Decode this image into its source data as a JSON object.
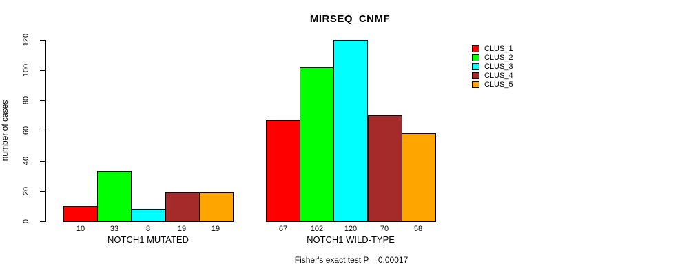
{
  "chart_data": {
    "type": "bar",
    "title": "MIRSEQ_CNMF",
    "ylabel": "number of cases",
    "xlabel": "",
    "ylim": [
      0,
      120
    ],
    "yticks": [
      0,
      20,
      40,
      60,
      80,
      100,
      120
    ],
    "grid": false,
    "legend_position": "top-right",
    "categories": [
      "NOTCH1 MUTATED",
      "NOTCH1 WILD-TYPE"
    ],
    "series": [
      {
        "name": "CLUS_1",
        "color": "#FF0000",
        "values": [
          10,
          67
        ]
      },
      {
        "name": "CLUS_2",
        "color": "#00FF00",
        "values": [
          33,
          102
        ]
      },
      {
        "name": "CLUS_3",
        "color": "#00FFFF",
        "values": [
          8,
          120
        ]
      },
      {
        "name": "CLUS_4",
        "color": "#A52A2A",
        "values": [
          19,
          70
        ]
      },
      {
        "name": "CLUS_5",
        "color": "#FFA500",
        "values": [
          19,
          58
        ]
      }
    ],
    "bar_value_labels": [
      [
        10,
        33,
        8,
        19,
        19
      ],
      [
        67,
        102,
        120,
        70,
        58
      ]
    ],
    "caption": "Fisher's exact test P = 0.00017",
    "axis_color": "#000000",
    "background_color": "#FFFFFF"
  }
}
